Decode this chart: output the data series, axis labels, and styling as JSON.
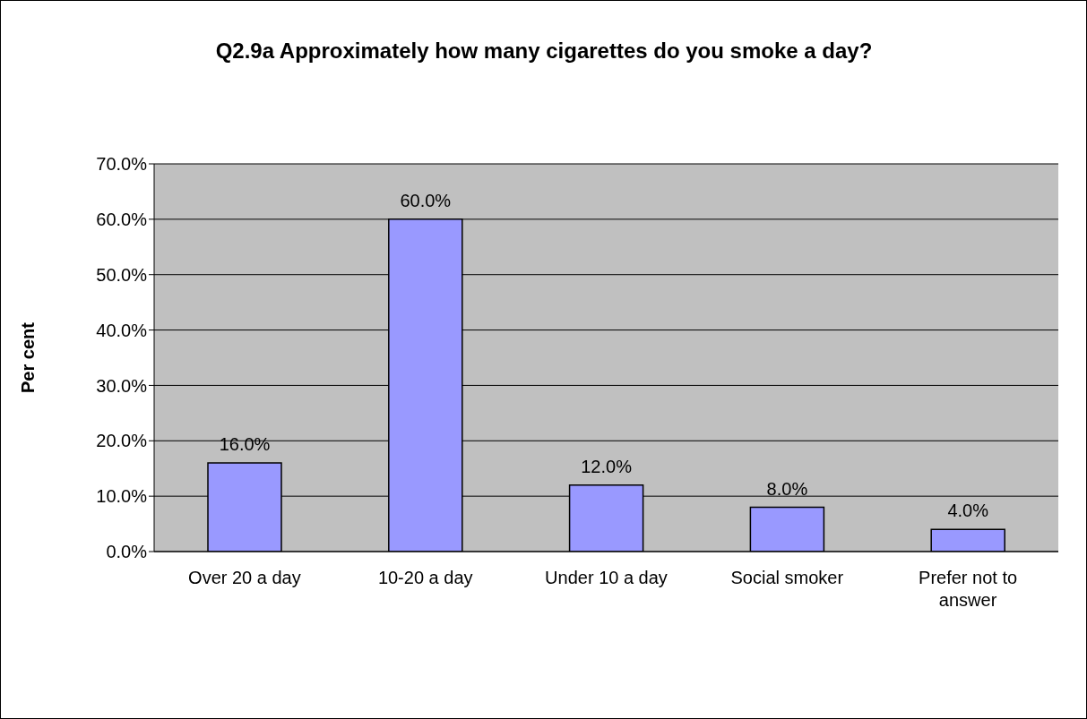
{
  "chart_data": {
    "type": "bar",
    "title": "Q2.9a Approximately how many cigarettes do you smoke a day?",
    "ylabel": "Per cent",
    "categories": [
      "Over 20 a day",
      "10-20 a day",
      "Under 10 a day",
      "Social smoker",
      "Prefer not to answer"
    ],
    "values": [
      16,
      60,
      12,
      8,
      4
    ],
    "value_labels": [
      "16.0%",
      "60.0%",
      "12.0%",
      "8.0%",
      "4.0%"
    ],
    "color": "#9999ff",
    "ylim": [
      0,
      70
    ],
    "yticks": [
      {
        "value": 0,
        "label": "0.0%"
      },
      {
        "value": 10,
        "label": "10.0%"
      },
      {
        "value": 20,
        "label": "20.0%"
      },
      {
        "value": 30,
        "label": "30.0%"
      },
      {
        "value": 40,
        "label": "40.0%"
      },
      {
        "value": 50,
        "label": "50.0%"
      },
      {
        "value": 60,
        "label": "60.0%"
      },
      {
        "value": 70,
        "label": "70.0%"
      }
    ],
    "grid": "y"
  }
}
